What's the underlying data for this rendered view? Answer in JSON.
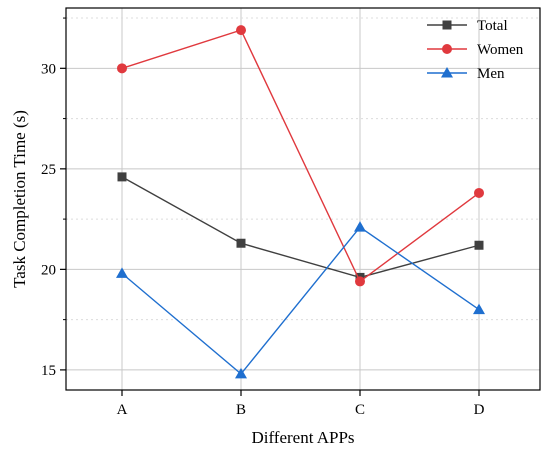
{
  "chart_data": {
    "type": "line",
    "title": "",
    "xlabel": "Different APPs",
    "ylabel": "Task Completion Time (s)",
    "categories": [
      "A",
      "B",
      "C",
      "D"
    ],
    "ylim": [
      14,
      33
    ],
    "yticks": [
      15,
      20,
      25,
      30
    ],
    "grid": true,
    "legend_position": "top-right",
    "series": [
      {
        "name": "Total",
        "color": "#404040",
        "marker": "square",
        "values": [
          24.6,
          21.3,
          19.6,
          21.2
        ]
      },
      {
        "name": "Women",
        "color": "#e0393e",
        "marker": "circle",
        "values": [
          30.0,
          31.9,
          19.4,
          23.8
        ]
      },
      {
        "name": "Men",
        "color": "#1f6fcf",
        "marker": "triangle",
        "values": [
          19.8,
          14.8,
          22.1,
          18.0
        ]
      }
    ]
  }
}
